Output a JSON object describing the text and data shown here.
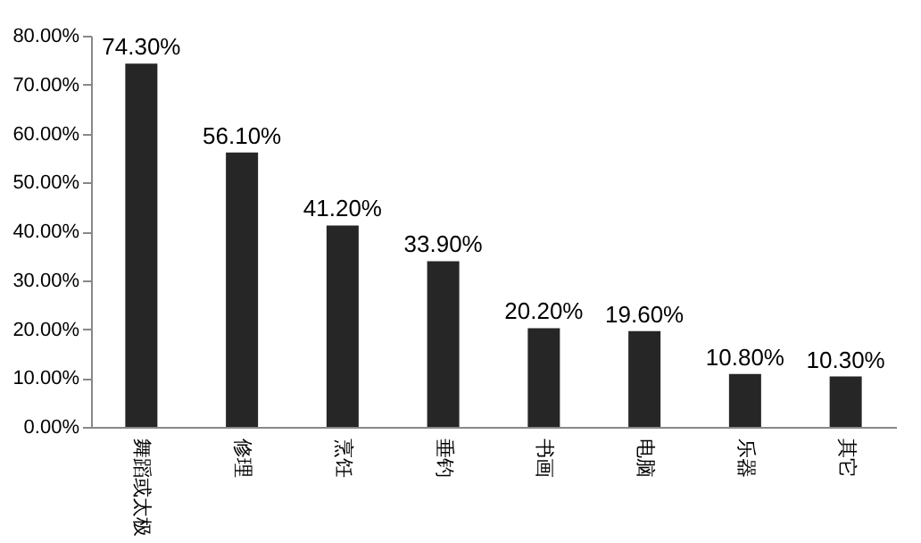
{
  "chart_data": {
    "type": "bar",
    "categories": [
      "舞蹈或太极",
      "修理",
      "烹饪",
      "垂钓",
      "书画",
      "电脑",
      "乐器",
      "其它"
    ],
    "values": [
      74.3,
      56.1,
      41.2,
      33.9,
      20.2,
      19.6,
      10.8,
      10.3
    ],
    "value_labels": [
      "74.30%",
      "56.10%",
      "41.20%",
      "33.90%",
      "20.20%",
      "19.60%",
      "10.80%",
      "10.30%"
    ],
    "color": "#262626",
    "ylim": [
      0,
      80
    ],
    "yticks": [
      {
        "value": 0,
        "label": "0.00%"
      },
      {
        "value": 10,
        "label": "10.00%"
      },
      {
        "value": 20,
        "label": "20.00%"
      },
      {
        "value": 30,
        "label": "30.00%"
      },
      {
        "value": 40,
        "label": "40.00%"
      },
      {
        "value": 50,
        "label": "50.00%"
      },
      {
        "value": 60,
        "label": "60.00%"
      },
      {
        "value": 70,
        "label": "70.00%"
      },
      {
        "value": 80,
        "label": "80.00%"
      }
    ],
    "grid": false
  }
}
